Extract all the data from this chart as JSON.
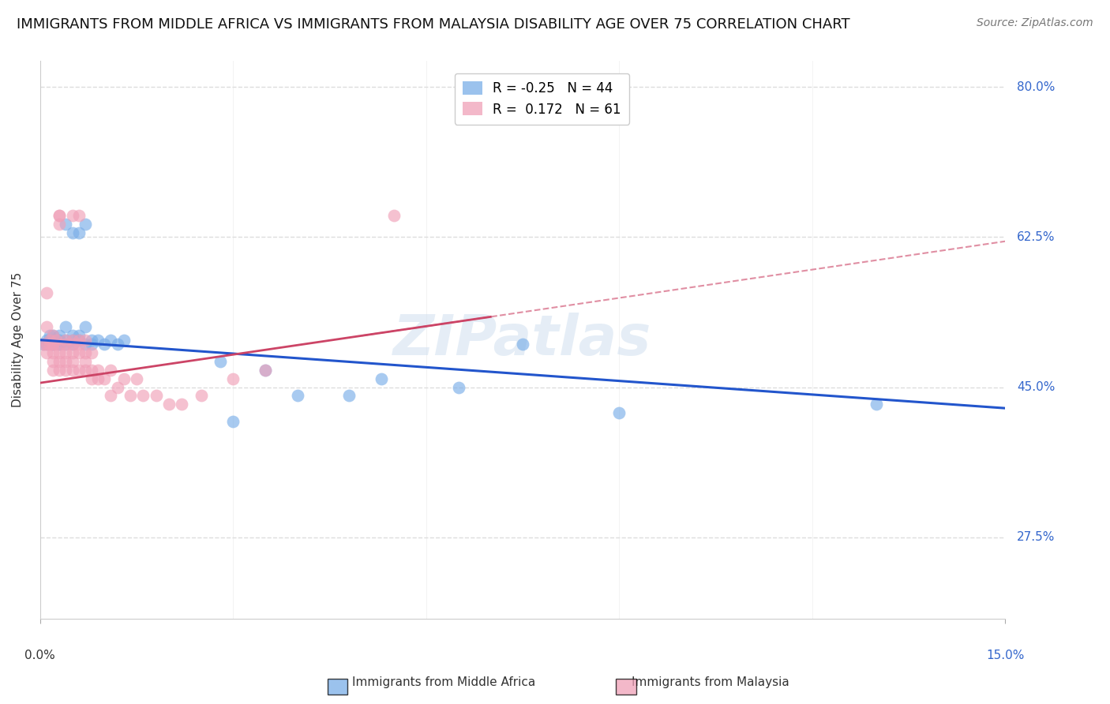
{
  "title": "IMMIGRANTS FROM MIDDLE AFRICA VS IMMIGRANTS FROM MALAYSIA DISABILITY AGE OVER 75 CORRELATION CHART",
  "source": "Source: ZipAtlas.com",
  "ylabel": "Disability Age Over 75",
  "xlim": [
    0.0,
    0.15
  ],
  "ylim": [
    0.18,
    0.83
  ],
  "ytick_labels": [
    "27.5%",
    "45.0%",
    "62.5%",
    "80.0%"
  ],
  "ytick_positions": [
    0.275,
    0.45,
    0.625,
    0.8
  ],
  "background_color": "#ffffff",
  "grid_color": "#dddddd",
  "blue_color": "#7aaee8",
  "pink_color": "#f0a0b8",
  "blue_line_color": "#2255cc",
  "pink_line_color": "#cc4466",
  "series": [
    {
      "name": "Immigrants from Middle Africa",
      "R": -0.25,
      "N": 44,
      "x": [
        0.0005,
        0.001,
        0.001,
        0.0015,
        0.0015,
        0.002,
        0.002,
        0.002,
        0.002,
        0.003,
        0.003,
        0.003,
        0.003,
        0.004,
        0.004,
        0.004,
        0.004,
        0.005,
        0.005,
        0.005,
        0.005,
        0.006,
        0.006,
        0.006,
        0.007,
        0.007,
        0.007,
        0.008,
        0.008,
        0.009,
        0.01,
        0.011,
        0.012,
        0.013,
        0.028,
        0.03,
        0.035,
        0.04,
        0.048,
        0.053,
        0.065,
        0.075,
        0.09,
        0.13
      ],
      "y": [
        0.5,
        0.5,
        0.505,
        0.505,
        0.51,
        0.5,
        0.51,
        0.505,
        0.5,
        0.5,
        0.505,
        0.51,
        0.5,
        0.5,
        0.505,
        0.64,
        0.52,
        0.63,
        0.51,
        0.5,
        0.505,
        0.63,
        0.51,
        0.505,
        0.64,
        0.52,
        0.5,
        0.5,
        0.505,
        0.505,
        0.5,
        0.505,
        0.5,
        0.505,
        0.48,
        0.41,
        0.47,
        0.44,
        0.44,
        0.46,
        0.45,
        0.5,
        0.42,
        0.43
      ]
    },
    {
      "name": "Immigrants from Malaysia",
      "R": 0.172,
      "N": 61,
      "x": [
        0.0005,
        0.001,
        0.001,
        0.001,
        0.001,
        0.0015,
        0.0015,
        0.002,
        0.002,
        0.002,
        0.002,
        0.002,
        0.002,
        0.0025,
        0.003,
        0.003,
        0.003,
        0.003,
        0.003,
        0.003,
        0.003,
        0.004,
        0.004,
        0.004,
        0.004,
        0.004,
        0.005,
        0.005,
        0.005,
        0.005,
        0.005,
        0.005,
        0.006,
        0.006,
        0.006,
        0.006,
        0.006,
        0.007,
        0.007,
        0.007,
        0.007,
        0.008,
        0.008,
        0.008,
        0.009,
        0.009,
        0.01,
        0.011,
        0.011,
        0.012,
        0.013,
        0.014,
        0.015,
        0.016,
        0.018,
        0.02,
        0.022,
        0.025,
        0.03,
        0.035,
        0.055
      ],
      "y": [
        0.5,
        0.52,
        0.5,
        0.56,
        0.49,
        0.5,
        0.505,
        0.5,
        0.49,
        0.48,
        0.51,
        0.5,
        0.47,
        0.505,
        0.49,
        0.47,
        0.5,
        0.48,
        0.65,
        0.65,
        0.64,
        0.5,
        0.48,
        0.49,
        0.47,
        0.505,
        0.49,
        0.65,
        0.48,
        0.47,
        0.5,
        0.505,
        0.5,
        0.505,
        0.65,
        0.49,
        0.47,
        0.49,
        0.47,
        0.48,
        0.505,
        0.46,
        0.47,
        0.49,
        0.46,
        0.47,
        0.46,
        0.47,
        0.44,
        0.45,
        0.46,
        0.44,
        0.46,
        0.44,
        0.44,
        0.43,
        0.43,
        0.44,
        0.46,
        0.47,
        0.65
      ]
    }
  ],
  "watermark": "ZIPatlas",
  "title_fontsize": 13,
  "axis_label_fontsize": 11,
  "tick_fontsize": 11,
  "legend_fontsize": 12,
  "source_fontsize": 10
}
